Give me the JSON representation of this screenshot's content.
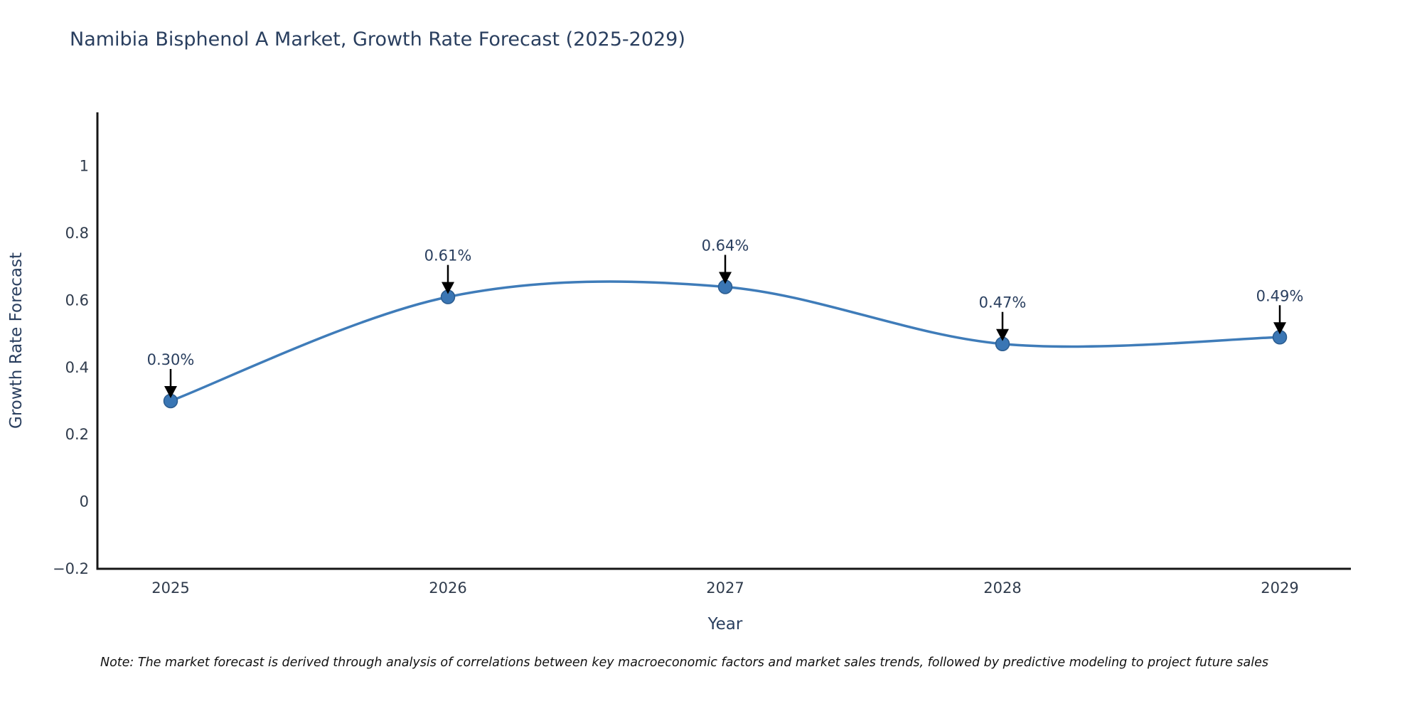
{
  "header": {
    "title": "Namibia Bisphenol A Market, Growth Rate Forecast (2025-2029)"
  },
  "footnote": {
    "text": "Note: The market forecast is derived through analysis of correlations between key macroeconomic factors and market sales trends, followed by predictive modeling to project future sales"
  },
  "chart_data": {
    "type": "line",
    "title": "Namibia Bisphenol A Market, Growth Rate Forecast (2025-2029)",
    "xlabel": "Year",
    "ylabel": "Growth Rate Forecast",
    "categories": [
      "2025",
      "2026",
      "2027",
      "2028",
      "2029"
    ],
    "series": [
      {
        "name": "Growth Rate Forecast",
        "values": [
          0.3,
          0.61,
          0.64,
          0.47,
          0.49
        ],
        "point_labels": [
          "0.30%",
          "0.61%",
          "0.64%",
          "0.47%",
          "0.49%"
        ]
      }
    ],
    "line_shape": "spline",
    "markers": true,
    "grid": false,
    "legend_position": "none",
    "ylim": [
      -0.2,
      1.16
    ],
    "yticks": [
      -0.2,
      0,
      0.2,
      0.4,
      0.6,
      0.8,
      1
    ],
    "ytick_labels": [
      "−0.2",
      "0",
      "0.2",
      "0.4",
      "0.6",
      "0.8",
      "1"
    ],
    "colors": {
      "line": "#3f7cb9",
      "marker_fill": "#3a76b4",
      "marker_edge": "#2b5c8f",
      "axis_line": "#161616",
      "title_text": "#2a3f5f",
      "tick_text": "#2f3b4c",
      "annotation_text": "#2a3f5f",
      "arrow": "#000000",
      "background": "#ffffff"
    }
  }
}
